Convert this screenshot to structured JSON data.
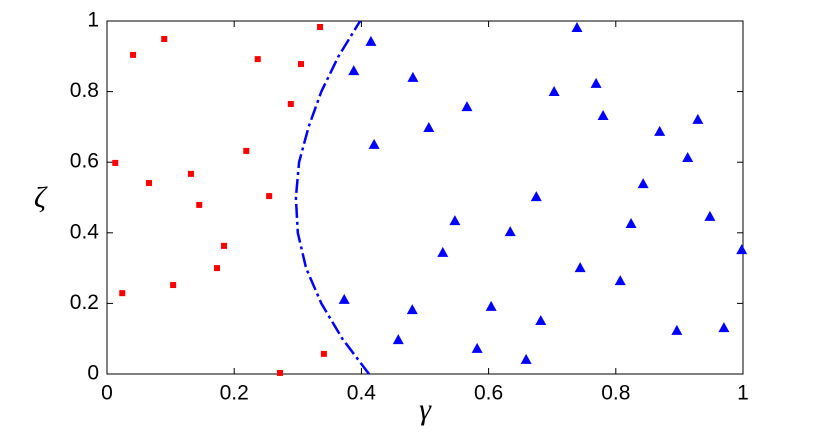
{
  "chart_data": {
    "type": "scatter",
    "x_label": "γ",
    "y_label": "ζ",
    "xlim": [
      0,
      1
    ],
    "ylim": [
      0,
      1
    ],
    "xticks": [
      0,
      0.2,
      0.4,
      0.6,
      0.8,
      1
    ],
    "yticks": [
      0,
      0.2,
      0.4,
      0.6,
      0.8,
      1
    ],
    "grid": false,
    "series": [
      {
        "color": "#ff0000",
        "marker": "square",
        "x": [
          0.041,
          0.09,
          0.237,
          0.305,
          0.335,
          0.289,
          0.219,
          0.132,
          0.066,
          0.013,
          0.145,
          0.255,
          0.184,
          0.173,
          0.104,
          0.024,
          0.272,
          0.341
        ],
        "values": [
          0.904,
          0.949,
          0.892,
          0.878,
          0.983,
          0.765,
          0.632,
          0.567,
          0.541,
          0.598,
          0.479,
          0.504,
          0.363,
          0.3,
          0.252,
          0.229,
          0.003,
          0.057
        ]
      },
      {
        "color": "#0000ff",
        "marker": "triangle",
        "x": [
          0.415,
          0.388,
          0.481,
          0.42,
          0.566,
          0.506,
          0.703,
          0.739,
          0.769,
          0.78,
          0.869,
          0.929,
          0.913,
          0.843,
          0.675,
          0.547,
          0.528,
          0.634,
          0.824,
          0.948,
          0.998,
          0.744,
          0.807,
          0.373,
          0.48,
          0.604,
          0.682,
          0.458,
          0.582,
          0.659,
          0.896,
          0.97
        ],
        "values": [
          0.941,
          0.858,
          0.839,
          0.649,
          0.756,
          0.697,
          0.799,
          0.98,
          0.822,
          0.731,
          0.686,
          0.72,
          0.612,
          0.538,
          0.501,
          0.433,
          0.343,
          0.402,
          0.425,
          0.445,
          0.351,
          0.3,
          0.263,
          0.21,
          0.181,
          0.19,
          0.15,
          0.096,
          0.071,
          0.04,
          0.122,
          0.13
        ]
      },
      {
        "color": "#0000ff",
        "line": "dash-dot",
        "x": [
          0.412,
          0.37,
          0.337,
          0.313,
          0.3,
          0.297,
          0.302,
          0.317,
          0.337,
          0.364,
          0.398
        ],
        "values": [
          0,
          0.1,
          0.2,
          0.3,
          0.4,
          0.5,
          0.6,
          0.7,
          0.8,
          0.9,
          1
        ]
      }
    ]
  }
}
